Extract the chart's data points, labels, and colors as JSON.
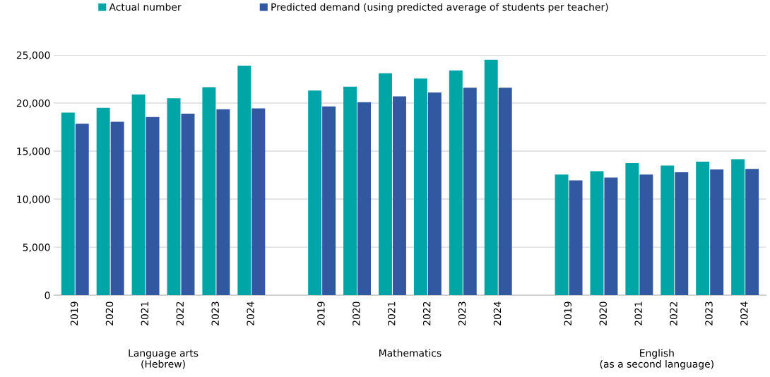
{
  "chart_data": {
    "type": "bar",
    "categories": [
      "2019",
      "2020",
      "2021",
      "2022",
      "2023",
      "2024",
      null,
      "2019",
      "2020",
      "2021",
      "2022",
      "2023",
      "2024",
      null,
      "2019",
      "2020",
      "2021",
      "2022",
      "2023",
      "2024"
    ],
    "series": [
      {
        "name": "Actual number",
        "color": "#00a5a5",
        "values": [
          19000,
          19500,
          20900,
          20500,
          21650,
          23900,
          null,
          21300,
          21700,
          23100,
          22550,
          23400,
          24500,
          null,
          12550,
          12900,
          13750,
          13500,
          13900,
          14150
        ]
      },
      {
        "name": "Predicted demand (using predicted average of students per teacher)",
        "color": "#3158a0",
        "values": [
          17850,
          18050,
          18550,
          18900,
          19350,
          19450,
          null,
          19650,
          20100,
          20700,
          21100,
          21600,
          21600,
          null,
          11950,
          12250,
          12550,
          12800,
          13100,
          13150
        ]
      }
    ],
    "annotations": [
      "Language arts\n(Hebrew)",
      "Mathematics",
      "English\n(as a second language)"
    ],
    "ylim": [
      0,
      25000
    ],
    "yticks": [
      {
        "value": 0,
        "label": "0"
      },
      {
        "value": 5000,
        "label": "5,000"
      },
      {
        "value": 10000,
        "label": "10,000"
      },
      {
        "value": 15000,
        "label": "15,000"
      },
      {
        "value": 20000,
        "label": "20,000"
      },
      {
        "value": 25000,
        "label": "25,000"
      }
    ],
    "grid": "y",
    "legend": "top left"
  }
}
